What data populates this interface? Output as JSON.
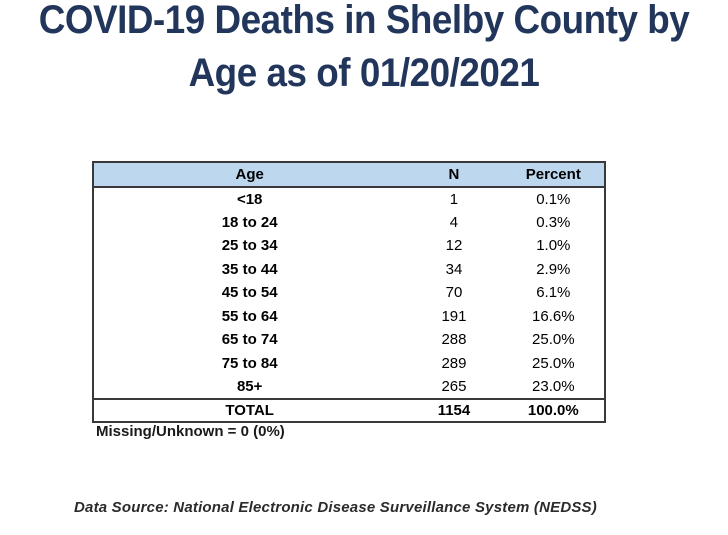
{
  "title": {
    "line1": "COVID-19 Deaths in Shelby County by",
    "line2": "Age as of 01/20/2021"
  },
  "colors": {
    "title": "#22365c",
    "table_header_bg": "#BDD7EE",
    "table_border": "#393939"
  },
  "table": {
    "headers": [
      "Age",
      "N",
      "Percent"
    ],
    "rows": [
      {
        "age": "<18",
        "n": "1",
        "percent": "0.1%"
      },
      {
        "age": "18 to 24",
        "n": "4",
        "percent": "0.3%"
      },
      {
        "age": "25 to 34",
        "n": "12",
        "percent": "1.0%"
      },
      {
        "age": "35 to 44",
        "n": "34",
        "percent": "2.9%"
      },
      {
        "age": "45 to 54",
        "n": "70",
        "percent": "6.1%"
      },
      {
        "age": "55 to 64",
        "n": "191",
        "percent": "16.6%"
      },
      {
        "age": "65 to 74",
        "n": "288",
        "percent": "25.0%"
      },
      {
        "age": "75 to 84",
        "n": "289",
        "percent": "25.0%"
      },
      {
        "age": "85+",
        "n": "265",
        "percent": "23.0%"
      }
    ],
    "total": {
      "age": "TOTAL",
      "n": "1154",
      "percent": "100.0%"
    }
  },
  "footnote": "Missing/Unknown = 0 (0%)",
  "source": "Data Source: National Electronic Disease Surveillance System (NEDSS)"
}
